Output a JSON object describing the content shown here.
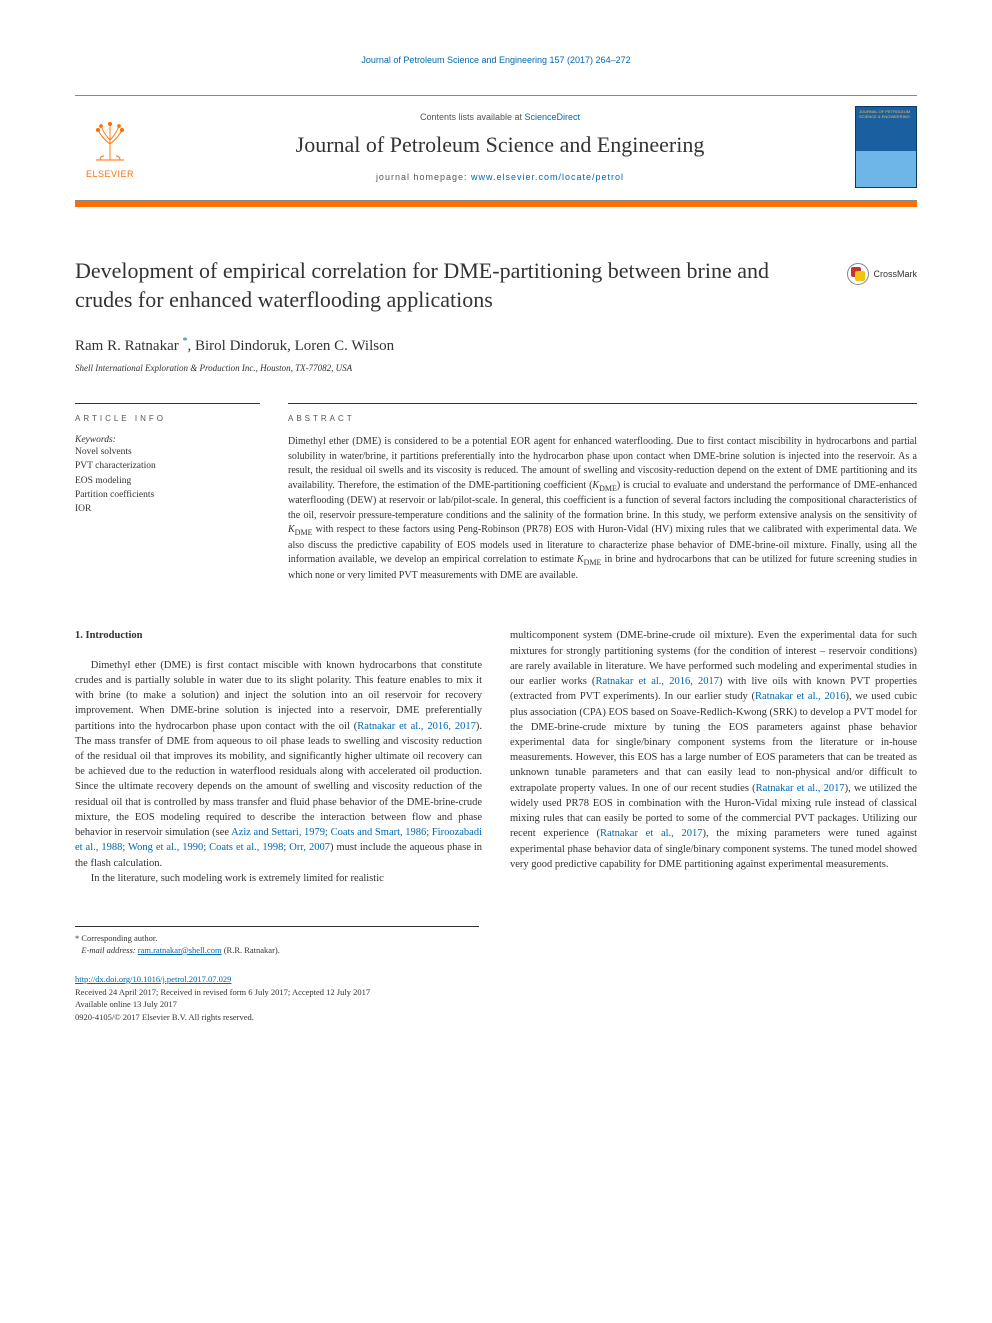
{
  "page": {
    "running_header": "Journal of Petroleum Science and Engineering 157 (2017) 264–272",
    "accent_color": "#ff6e00",
    "link_color": "#0067b1"
  },
  "header": {
    "elsevier_label": "ELSEVIER",
    "contents_prefix": "Contents lists available at ",
    "contents_link": "ScienceDirect",
    "journal_name": "Journal of Petroleum Science and Engineering",
    "homepage_prefix": "journal homepage: ",
    "homepage_url": "www.elsevier.com/locate/petrol",
    "cover_text": "JOURNAL OF PETROLEUM SCIENCE & ENGINEERING"
  },
  "crossmark_label": "CrossMark",
  "article": {
    "title": "Development of empirical correlation for DME-partitioning between brine and crudes for enhanced waterflooding applications",
    "authors_html": "Ram R. Ratnakar <sup>*</sup>, Birol Dindoruk, Loren C. Wilson",
    "affiliation": "Shell International Exploration & Production Inc., Houston, TX-77082, USA"
  },
  "info": {
    "caption": "ARTICLE INFO",
    "keywords_label": "Keywords:",
    "keywords": [
      "Novel solvents",
      "PVT characterization",
      "EOS modeling",
      "Partition coefficients",
      "IOR"
    ]
  },
  "abstract": {
    "caption": "ABSTRACT",
    "text_html": "Dimethyl ether (DME) is considered to be a potential EOR agent for enhanced waterflooding. Due to first contact miscibility in hydrocarbons and partial solubility in water/brine, it partitions preferentially into the hydrocarbon phase upon contact when DME-brine solution is injected into the reservoir. As a result, the residual oil swells and its viscosity is reduced. The amount of swelling and viscosity-reduction depend on the extent of DME partitioning and its availability. Therefore, the estimation of the DME-partitioning coefficient (<em>K</em><sub>DME</sub>) is crucial to evaluate and understand the performance of DME-enhanced waterflooding (DEW) at reservoir or lab/pilot-scale. In general, this coefficient is a function of several factors including the compositional characteristics of the oil, reservoir pressure-temperature conditions and the salinity of the formation brine. In this study, we perform extensive analysis on the sensitivity of <em>K</em><sub>DME</sub> with respect to these factors using Peng-Robinson (PR78) EOS with Huron-Vidal (HV) mixing rules that we calibrated with experimental data. We also discuss the predictive capability of EOS models used in literature to characterize phase behavior of DME-brine-oil mixture. Finally, using all the information available, we develop an empirical correlation to estimate <em>K</em><sub>DME</sub> in brine and hydrocarbons that can be utilized for future screening studies in which none or very limited PVT measurements with DME are available."
  },
  "body": {
    "heading": "1.  Introduction",
    "col1_p1_html": "Dimethyl ether (DME) is first contact miscible with known hydrocarbons that constitute crudes and is partially soluble in water due to its slight polarity. This feature enables to mix it with brine (to make a solution) and inject the solution into an oil reservoir for recovery improvement. When DME-brine solution is injected into a reservoir, DME preferentially partitions into the hydrocarbon phase upon contact with the oil (<span class=\"cite\">Ratnakar et al., 2016, 2017</span>). The mass transfer of DME from aqueous to oil phase leads to swelling and viscosity reduction of the residual oil that improves its mobility, and significantly higher ultimate oil recovery can be achieved due to the reduction in waterflood residuals along with accelerated oil production. Since the ultimate recovery depends on the amount of swelling and viscosity reduction of the residual oil that is controlled by mass transfer and fluid phase behavior of the DME-brine-crude mixture, the EOS modeling required to describe the interaction between flow and phase behavior in reservoir simulation (see <span class=\"cite\">Aziz and Settari, 1979; Coats and Smart, 1986; Firoozabadi et al., 1988; Wong et al., 1990; Coats et al., 1998; Orr, 2007</span>) must include the aqueous phase in the flash calculation.",
    "col1_p2_html": "In the literature, such modeling work is extremely limited for realistic",
    "col2_p1_html": "multicomponent system (DME-brine-crude oil mixture). Even the experimental data for such mixtures for strongly partitioning systems (for the condition of interest – reservoir conditions) are rarely available in literature. We have performed such modeling and experimental studies in our earlier works (<span class=\"cite\">Ratnakar et al., 2016, 2017</span>) with live oils with known PVT properties (extracted from PVT experiments). In our earlier study (<span class=\"cite\">Ratnakar et al., 2016</span>), we used cubic plus association (CPA) EOS based on Soave-Redlich-Kwong (SRK) to develop a PVT model for the DME-brine-crude mixture by tuning the EOS parameters against phase behavior experimental data for single/binary component systems from the literature or in-house measurements. However, this EOS has a large number of EOS parameters that can be treated as unknown tunable parameters and that can easily lead to non-physical and/or difficult to extrapolate property values. In one of our recent studies (<span class=\"cite\">Ratnakar et al., 2017</span>), we utilized the widely used PR78 EOS in combination with the Huron-Vidal mixing rule instead of classical mixing rules that can easily be ported to some of the commercial PVT packages. Utilizing our recent experience (<span class=\"cite\">Ratnakar et al., 2017</span>), the mixing parameters were tuned against experimental phase behavior data of single/binary component systems. The tuned model showed very good predictive capability for DME partitioning against experimental measurements."
  },
  "footnotes": {
    "corresponding": "* Corresponding author.",
    "email_label": "E-mail address:",
    "email": "ram.ratnakar@shell.com",
    "email_attribution": "(R.R. Ratnakar)."
  },
  "footer": {
    "doi": "http://dx.doi.org/10.1016/j.petrol.2017.07.029",
    "history": "Received 24 April 2017; Received in revised form 6 July 2017; Accepted 12 July 2017",
    "available": "Available online 13 July 2017",
    "copyright": "0920-4105/© 2017 Elsevier B.V. All rights reserved."
  }
}
